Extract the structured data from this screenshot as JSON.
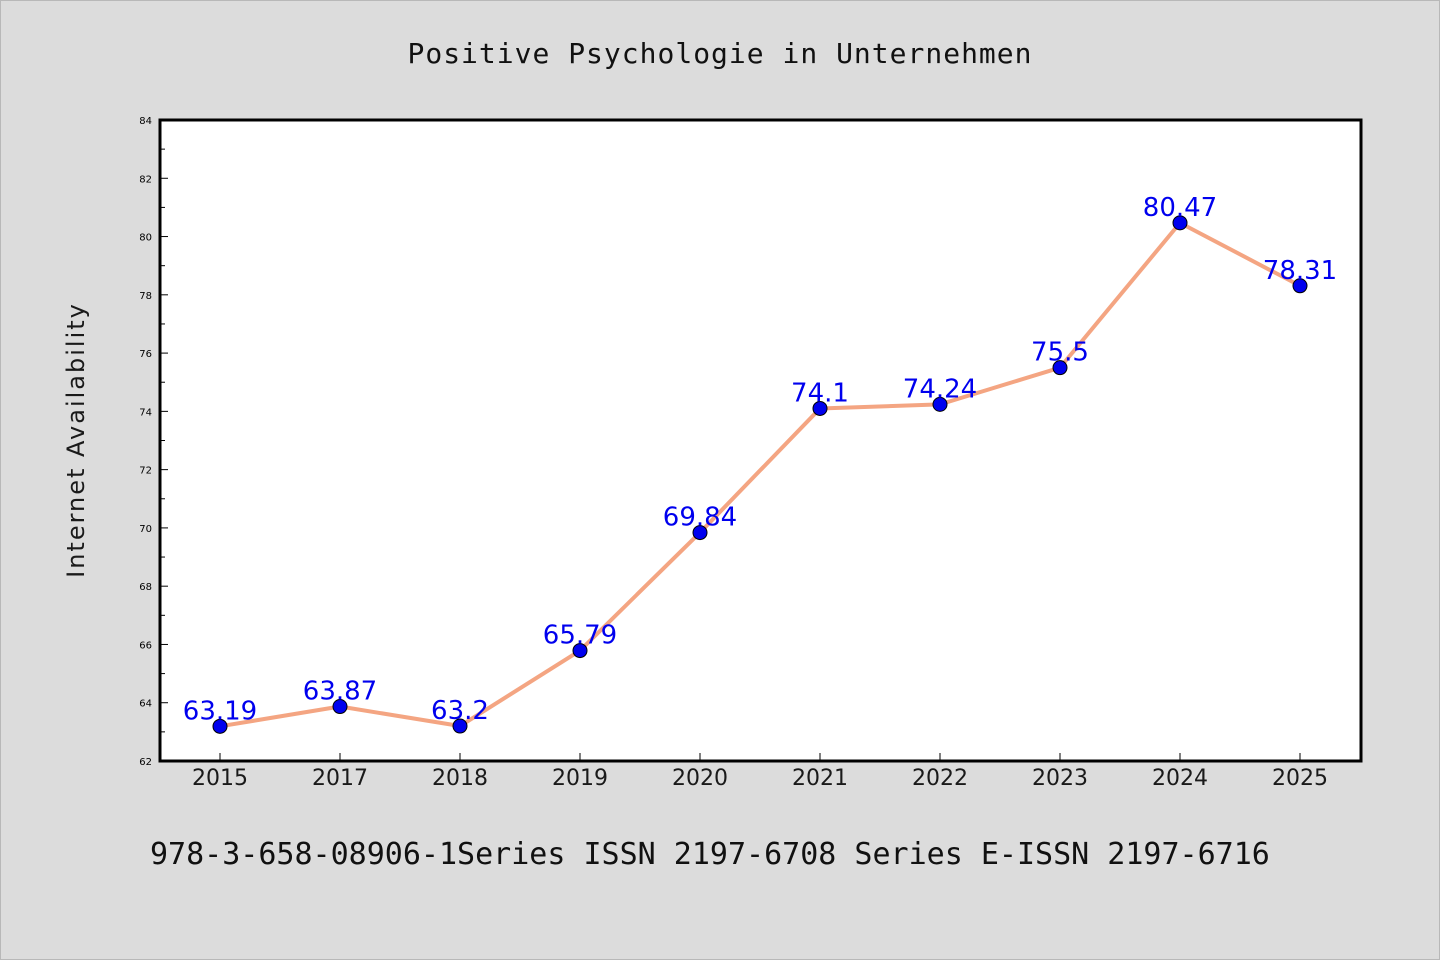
{
  "chart_data": {
    "type": "line",
    "title": "Positive Psychologie in Unternehmen",
    "xlabel": "",
    "ylabel": "Internet Availability",
    "categories": [
      "2015",
      "2017",
      "2018",
      "2019",
      "2020",
      "2021",
      "2022",
      "2023",
      "2024",
      "2025"
    ],
    "series": [
      {
        "values": [
          63.19,
          63.87,
          63.2,
          65.79,
          69.84,
          74.1,
          74.24,
          75.5,
          80.47,
          78.31
        ],
        "labels": [
          "63.19",
          "63.87",
          "63.2",
          "65.79",
          "69.84",
          "74.1",
          "74.24",
          "75.5",
          "80.47",
          "78.31"
        ],
        "line_color": "#f4a582",
        "marker_color": "#0000ee"
      }
    ],
    "ylim": [
      62,
      84
    ],
    "yticks": [
      "62",
      "64",
      "66",
      "68",
      "70",
      "72",
      "74",
      "76",
      "78",
      "80",
      "82",
      "84"
    ],
    "grid": false,
    "legend": "none"
  },
  "footer": {
    "text": "978-3-658-08906-1Series ISSN 2197-6708 Series E-ISSN 2197-6716"
  }
}
